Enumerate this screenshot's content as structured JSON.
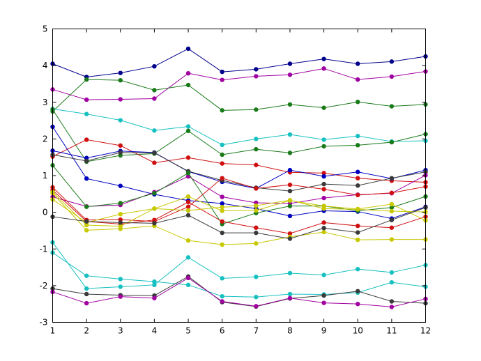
{
  "chart_data": {
    "type": "line",
    "x": [
      1,
      2,
      3,
      4,
      5,
      6,
      7,
      8,
      9,
      10,
      11,
      12
    ],
    "xlim": [
      1,
      12
    ],
    "ylim": [
      -3,
      5
    ],
    "xticks": [
      "1",
      "2",
      "3",
      "4",
      "5",
      "6",
      "7",
      "8",
      "9",
      "10",
      "11",
      "12"
    ],
    "yticks": [
      "-3",
      "-2",
      "-1",
      "0",
      "1",
      "2",
      "3",
      "4",
      "5"
    ],
    "grid": false,
    "legend": "none",
    "series": [
      {
        "color": "#00008b",
        "values": [
          4.05,
          3.69,
          3.8,
          3.98,
          4.46,
          3.83,
          3.9,
          4.05,
          4.18,
          4.05,
          4.11,
          4.25
        ]
      },
      {
        "color": "#a000a0",
        "values": [
          3.35,
          3.07,
          3.08,
          3.1,
          3.79,
          3.61,
          3.71,
          3.75,
          3.92,
          3.62,
          3.7,
          3.84
        ]
      },
      {
        "color": "#1a7a1a",
        "values": [
          2.75,
          3.62,
          3.6,
          3.33,
          3.47,
          2.78,
          2.8,
          2.94,
          2.85,
          3.01,
          2.89,
          2.94
        ]
      },
      {
        "color": "#17c0c0",
        "values": [
          2.82,
          2.68,
          2.51,
          2.23,
          2.34,
          1.84,
          2.0,
          2.12,
          1.98,
          2.08,
          1.93,
          1.95
        ]
      },
      {
        "color": "#1a7a1a",
        "values": [
          2.8,
          1.38,
          1.55,
          1.6,
          2.22,
          1.57,
          1.72,
          1.62,
          1.8,
          1.83,
          1.91,
          2.13
        ]
      },
      {
        "color": "#d01010",
        "values": [
          1.52,
          1.98,
          1.82,
          1.35,
          1.49,
          1.33,
          1.29,
          1.09,
          1.07,
          0.93,
          0.86,
          0.82
        ]
      },
      {
        "color": "#0000c0",
        "values": [
          1.68,
          1.48,
          1.67,
          1.63,
          1.11,
          0.83,
          0.65,
          1.15,
          0.98,
          1.1,
          0.92,
          1.15
        ]
      },
      {
        "color": "#0000c0",
        "values": [
          2.33,
          0.92,
          0.72,
          0.49,
          0.32,
          0.24,
          0.1,
          -0.1,
          0.04,
          0.02,
          -0.17,
          0.15
        ]
      },
      {
        "color": "#3a3a3a",
        "values": [
          1.57,
          1.4,
          1.63,
          1.62,
          1.12,
          0.87,
          0.67,
          0.58,
          0.77,
          0.73,
          0.93,
          1.1
        ]
      },
      {
        "color": "#a000a0",
        "values": [
          0.42,
          0.16,
          0.2,
          0.55,
          0.98,
          0.42,
          0.26,
          0.24,
          0.39,
          0.48,
          0.52,
          1.01
        ]
      },
      {
        "color": "#1a7a1a",
        "values": [
          1.28,
          0.15,
          0.25,
          0.52,
          1.07,
          -0.32,
          -0.02,
          0.17,
          0.17,
          0.04,
          0.13,
          0.43
        ]
      },
      {
        "color": "#d01010",
        "values": [
          0.6,
          -0.25,
          -0.32,
          -0.21,
          0.28,
          -0.25,
          -0.42,
          -0.58,
          -0.28,
          -0.37,
          -0.42,
          -0.12
        ]
      },
      {
        "color": "#d01010",
        "values": [
          0.68,
          -0.21,
          -0.2,
          -0.25,
          0.15,
          0.93,
          0.65,
          0.75,
          0.63,
          0.47,
          0.53,
          0.7
        ]
      },
      {
        "color": "#c8c800",
        "values": [
          0.52,
          -0.49,
          -0.45,
          -0.37,
          -0.77,
          -0.88,
          -0.85,
          -0.67,
          -0.54,
          -0.75,
          -0.74,
          -0.74
        ]
      },
      {
        "color": "#c8c800",
        "values": [
          0.35,
          -0.28,
          -0.05,
          0.1,
          0.43,
          0.04,
          0.05,
          0.32,
          0.17,
          0.09,
          0.22,
          -0.22
        ]
      },
      {
        "color": "#c8c800",
        "values": [
          0.55,
          -0.35,
          -0.38,
          0.1,
          0.05,
          0.14,
          0.18,
          0.33,
          0.1,
          0.08,
          0.03,
          0.01
        ]
      },
      {
        "color": "#3a3a3a",
        "values": [
          -0.12,
          -0.25,
          -0.28,
          -0.3,
          -0.08,
          -0.56,
          -0.56,
          -0.72,
          -0.43,
          -0.55,
          -0.21,
          0.13
        ]
      },
      {
        "color": "#17c0c0",
        "values": [
          -0.82,
          -2.08,
          -2.03,
          -1.98,
          -1.23,
          -1.8,
          -1.76,
          -1.66,
          -1.71,
          -1.55,
          -1.64,
          -1.44
        ]
      },
      {
        "color": "#17c0c0",
        "values": [
          -1.1,
          -1.73,
          -1.82,
          -1.89,
          -1.98,
          -2.29,
          -2.31,
          -2.23,
          -2.24,
          -2.19,
          -1.91,
          -2.03
        ]
      },
      {
        "color": "#3a3a3a",
        "values": [
          -2.08,
          -2.23,
          -2.26,
          -2.27,
          -1.75,
          -2.45,
          -2.57,
          -2.35,
          -2.27,
          -2.15,
          -2.43,
          -2.48
        ]
      },
      {
        "color": "#a000a0",
        "values": [
          -2.17,
          -2.48,
          -2.3,
          -2.34,
          -1.79,
          -2.43,
          -2.56,
          -2.34,
          -2.47,
          -2.5,
          -2.58,
          -2.36
        ]
      }
    ]
  }
}
